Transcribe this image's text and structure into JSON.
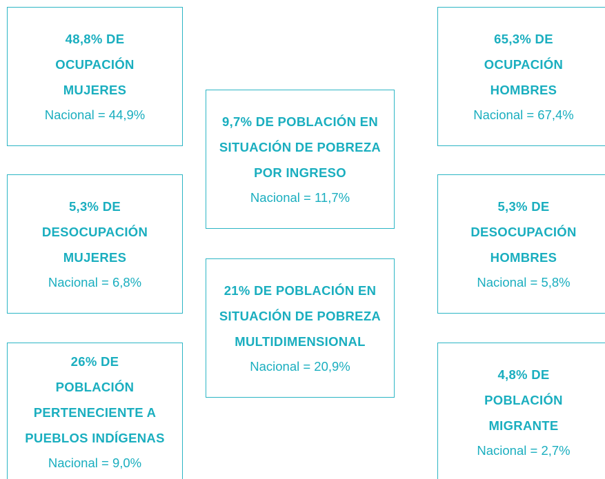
{
  "boxes": [
    {
      "headline": [
        "48,8% DE",
        "OCUPACIÓN",
        "MUJERES"
      ],
      "national": "Nacional = 44,9%"
    },
    {
      "headline": [
        "5,3% DE",
        "DESOCUPACIÓN",
        "MUJERES"
      ],
      "national": "Nacional = 6,8%"
    },
    {
      "headline": [
        "26% DE",
        "POBLACIÓN",
        "PERTENECIENTE A",
        "PUEBLOS INDÍGENAS"
      ],
      "national": "Nacional = 9,0%"
    },
    {
      "headline": [
        "9,7% DE POBLACIÓN EN",
        "SITUACIÓN DE POBREZA",
        "POR INGRESO"
      ],
      "national": "Nacional = 11,7%"
    },
    {
      "headline": [
        "21% DE POBLACIÓN EN",
        "SITUACIÓN DE POBREZA",
        "MULTIDIMENSIONAL"
      ],
      "national": "Nacional = 20,9%"
    },
    {
      "headline": [
        "65,3% DE",
        "OCUPACIÓN",
        "HOMBRES"
      ],
      "national": "Nacional = 67,4%"
    },
    {
      "headline": [
        "5,3% DE",
        "DESOCUPACIÓN",
        "HOMBRES"
      ],
      "national": "Nacional = 5,8%"
    },
    {
      "headline": [
        "4,8% DE",
        "POBLACIÓN",
        "MIGRANTE"
      ],
      "national": "Nacional = 2,7%"
    }
  ]
}
